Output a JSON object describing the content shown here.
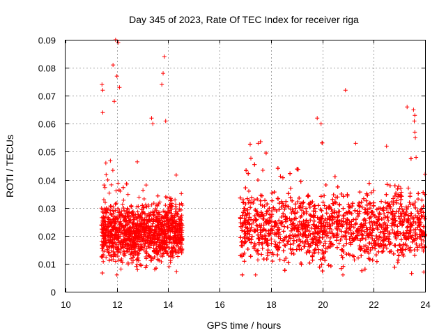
{
  "chart_data": {
    "type": "scatter",
    "title": "Day 345 of 2023, Rate Of TEC Index for receiver riga",
    "xlabel": "GPS time / hours",
    "ylabel": "ROTI / TECUs",
    "xlim": [
      10,
      24
    ],
    "ylim": [
      0,
      0.09
    ],
    "grid": true,
    "marker": "+",
    "color": "#ff0000",
    "xticks": [
      10,
      12,
      14,
      16,
      18,
      20,
      22,
      24
    ],
    "xtick_labels": [
      "10",
      "12",
      "14",
      "16",
      "18",
      "20",
      "22",
      "24"
    ],
    "yticks": [
      0,
      0.01,
      0.02,
      0.03,
      0.04,
      0.05,
      0.06,
      0.07,
      0.08,
      0.09
    ],
    "ytick_labels": [
      "0",
      "0.01",
      "0.02",
      "0.03",
      "0.04",
      "0.05",
      "0.06",
      "0.07",
      "0.08",
      "0.09"
    ],
    "segments": [
      {
        "x_start": 11.4,
        "x_end": 14.55,
        "typical_range": [
          0.008,
          0.04
        ]
      },
      {
        "x_start": 16.8,
        "x_end": 24.0,
        "typical_range": [
          0.007,
          0.045
        ]
      }
    ],
    "notable_points": [
      {
        "x": 11.95,
        "y": 0.09
      },
      {
        "x": 12.05,
        "y": 0.089
      },
      {
        "x": 11.85,
        "y": 0.081
      },
      {
        "x": 12.0,
        "y": 0.077
      },
      {
        "x": 11.42,
        "y": 0.074
      },
      {
        "x": 11.45,
        "y": 0.072
      },
      {
        "x": 11.45,
        "y": 0.064
      },
      {
        "x": 12.1,
        "y": 0.073
      },
      {
        "x": 11.9,
        "y": 0.068
      },
      {
        "x": 13.35,
        "y": 0.062
      },
      {
        "x": 13.4,
        "y": 0.06
      },
      {
        "x": 13.85,
        "y": 0.084
      },
      {
        "x": 13.8,
        "y": 0.078
      },
      {
        "x": 13.75,
        "y": 0.074
      },
      {
        "x": 13.9,
        "y": 0.061
      },
      {
        "x": 17.5,
        "y": 0.053
      },
      {
        "x": 19.8,
        "y": 0.062
      },
      {
        "x": 19.95,
        "y": 0.06
      },
      {
        "x": 20.9,
        "y": 0.072
      },
      {
        "x": 21.3,
        "y": 0.053
      },
      {
        "x": 22.5,
        "y": 0.052
      },
      {
        "x": 23.3,
        "y": 0.066
      },
      {
        "x": 23.55,
        "y": 0.065
      },
      {
        "x": 23.6,
        "y": 0.063
      },
      {
        "x": 23.58,
        "y": 0.061
      },
      {
        "x": 23.6,
        "y": 0.057
      },
      {
        "x": 23.62,
        "y": 0.055
      },
      {
        "x": 23.65,
        "y": 0.048
      },
      {
        "x": 24.0,
        "y": 0.042
      },
      {
        "x": 12.0,
        "y": 0.006
      },
      {
        "x": 20.8,
        "y": 0.006
      },
      {
        "x": 17.4,
        "y": 0.006
      },
      {
        "x": 23.95,
        "y": 0.007
      }
    ]
  }
}
